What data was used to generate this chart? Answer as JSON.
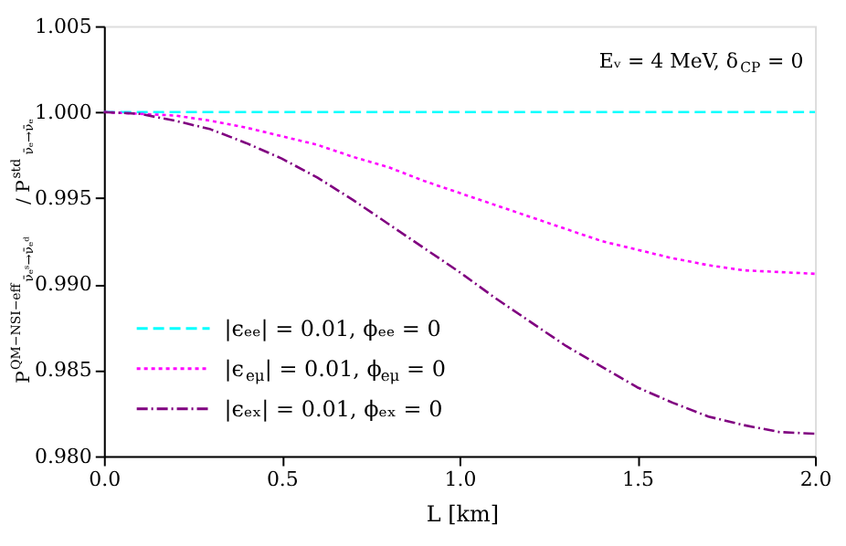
{
  "chart_data": {
    "type": "line",
    "xlabel": "L [km]",
    "ylabel": "P$^{QM−NSI−eff}$$_{ν̄ₑˢ→ν̄ₑᵈ}$ / P$^{std}$$_{ν̄ₑ→ν̄ₑ}$",
    "annotations": [
      "Eᵥ = 4 MeV, δ$_{CP}$ = 0"
    ],
    "x": [
      0,
      0.1,
      0.2,
      0.3,
      0.4,
      0.5,
      0.6,
      0.7,
      0.8,
      0.9,
      1.0,
      1.1,
      1.2,
      1.3,
      1.4,
      1.5,
      1.6,
      1.7,
      1.8,
      1.9,
      2.0
    ],
    "series": [
      {
        "name": "|ϵₑₑ| = 0.01, ϕₑₑ = 0",
        "color": "#00ffff",
        "line_style": "dashed",
        "values": [
          1,
          1,
          1,
          1,
          1,
          1,
          1,
          1,
          1,
          1,
          1,
          1,
          1,
          1,
          1,
          1,
          1,
          1,
          1,
          1,
          1
        ]
      },
      {
        "name": "|ϵ$_{eμ}$| = 0.01, ϕ$_{eμ}$ = 0",
        "color": "#ff00ff",
        "line_style": "dotted",
        "values": [
          1,
          0.9999,
          0.9998,
          0.9995,
          0.9991,
          0.9986,
          0.9981,
          0.9974,
          0.9968,
          0.996,
          0.9953,
          0.9946,
          0.9939,
          0.9932,
          0.9925,
          0.992,
          0.9915,
          0.9911,
          0.9908,
          0.9907,
          0.9906
        ]
      },
      {
        "name": "|ϵₑₓ| = 0.01, ϕₑₓ = 0",
        "color": "#800080",
        "line_style": "dashed",
        "values": [
          1,
          0.9999,
          0.9995,
          0.999,
          0.9982,
          0.9973,
          0.9962,
          0.9949,
          0.9935,
          0.9921,
          0.9907,
          0.9892,
          0.9878,
          0.9864,
          0.9852,
          0.984,
          0.9831,
          0.9823,
          0.9818,
          0.9814,
          0.9813
        ]
      }
    ],
    "xlim": [
      0,
      2
    ],
    "xticks": [
      {
        "value": 0,
        "label": "0.0"
      },
      {
        "value": 0.5,
        "label": "0.5"
      },
      {
        "value": 1,
        "label": "1.0"
      },
      {
        "value": 1.5,
        "label": "1.5"
      },
      {
        "value": 2,
        "label": "2.0"
      }
    ],
    "ylim": [
      0.98,
      1.005
    ],
    "yticks": [
      {
        "value": 0.98,
        "label": "0.980"
      },
      {
        "value": 0.985,
        "label": "0.985"
      },
      {
        "value": 0.99,
        "label": "0.990"
      },
      {
        "value": 0.995,
        "label": "0.995"
      },
      {
        "value": 1,
        "label": "1.000"
      },
      {
        "value": 1.005,
        "label": "1.005"
      }
    ],
    "grid": false,
    "legend": "bottom left",
    "marker": "none"
  }
}
